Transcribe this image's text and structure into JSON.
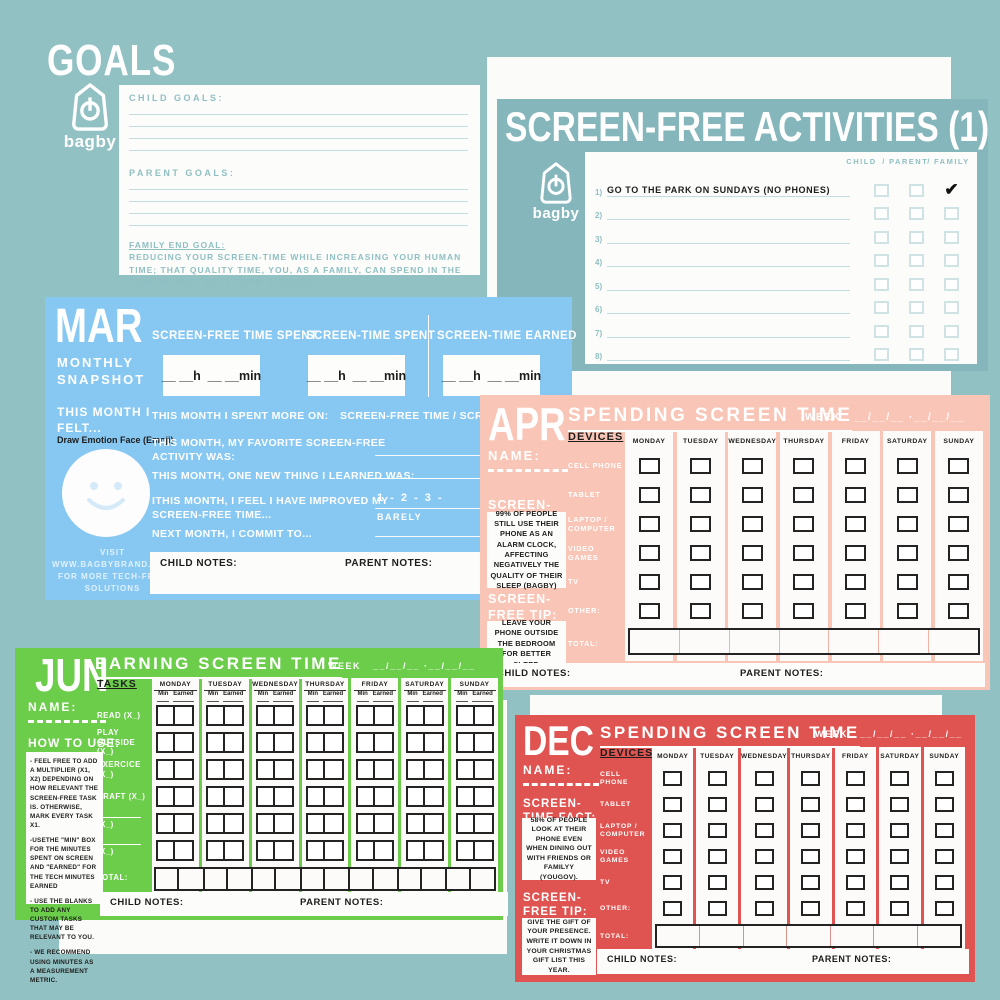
{
  "brand": {
    "name": "bagby"
  },
  "colors": {
    "background_teal": "#92c1c4",
    "panel_teal": "#84b6bb",
    "mar_blue": "#87c8f3",
    "apr_pink": "#f9c5b6",
    "jun_green": "#6ccd4b",
    "dec_red": "#df5350",
    "card_white": "#fcfcfb",
    "ink_black": "#1d1d1b",
    "teal_text": "#8fbfc2"
  },
  "goals": {
    "title": "GOALS",
    "child_label": "CHILD GOALS:",
    "parent_label": "PARENT GOALS:",
    "end_goal_label": "FAMILY END GOAL:",
    "end_goal_text": "REDUCING YOUR SCREEN-TIME WHILE INCREASING YOUR HUMAN TIME; THAT QUALITY TIME, YOU, AS A FAMILY, CAN SPEND IN THE REAL WORLD, AWAY FROM SCREENS."
  },
  "activities": {
    "title": "SCREEN-FREE ACTIVITIES (1)",
    "col_child": "CHILD",
    "col_parent": "PARENT",
    "col_family": "FAMILY",
    "col_separator": "/",
    "rows": [
      {
        "num": "1)",
        "text": "GO TO THE PARK ON SUNDAYS (NO PHONES)",
        "checked": "family"
      },
      {
        "num": "2)",
        "text": ""
      },
      {
        "num": "3)",
        "text": ""
      },
      {
        "num": "4)",
        "text": ""
      },
      {
        "num": "5)",
        "text": ""
      },
      {
        "num": "6)",
        "text": ""
      },
      {
        "num": "7)",
        "text": ""
      },
      {
        "num": "8)",
        "text": ""
      }
    ]
  },
  "mar": {
    "month": "MAR",
    "subtitle": "MONTHLY SNAPSHOT",
    "felt_label": "THIS MONTH I FELT...",
    "emoji_label": "Draw Emotion Face (Emoji)",
    "visit_text": "VISIT WWW.BAGBYBRAND.COM FOR MORE TECH-FREE SOLUTIONS",
    "col1": "SCREEN-FREE TIME SPENT",
    "col2": "SCREEN-TIME SPENT",
    "col3": "SCREEN-TIME EARNED",
    "time_box": "__ __h  __ __min",
    "q1": "THIS MONTH I SPENT MORE ON:",
    "q1_answer": "SCREEN-FREE TIME  /  SCREEN",
    "q2": "THIS MONTH, MY FAVORITE SCREEN-FREE ACTIVITY WAS:",
    "q3": "THIS MONTH, ONE NEW THING I LEARNED WAS:",
    "q4": "ITHIS MONTH, I FEEL I HAVE IMPROVED MY SCREEN-FREE TIME...",
    "q4_scale": "1  -  2  -  3  -",
    "q4_scale_caption": "BARELY",
    "q5": "NEXT MONTH, I COMMIT TO...",
    "child_notes": "CHILD NOTES:",
    "parent_notes": "PARENT NOTES:"
  },
  "apr": {
    "month": "APR",
    "title": "SPENDING SCREEN TIME",
    "week_label": "WEEK",
    "week_blanks": "__/__/__ ·__/__/__",
    "name_label": "NAME:",
    "fact_label": "SCREEN-TIME FACT:",
    "fact_text": "99% OF PEOPLE STILL USE THEIR PHONE AS AN ALARM CLOCK, AFFECTING NEGATIVELY THE QUALITY OF THEIR SLEEP (BAGBY)",
    "tip_label": "SCREEN-FREE TIP:",
    "tip_text": "LEAVE YOUR PHONE OUTSIDE THE BEDROOM FOR BETTER SLEEP.",
    "table_header": "DEVICES",
    "days": [
      "MONDAY",
      "TUESDAY",
      "WEDNESDAY",
      "THURSDAY",
      "FRIDAY",
      "SATURDAY",
      "SUNDAY"
    ],
    "devices": [
      "CELL PHONE",
      "TABLET",
      "LAPTOP / COMPUTER",
      "VIDEO GAMES",
      "TV",
      "OTHER:"
    ],
    "total_label": "TOTAL:",
    "child_notes": "CHILD NOTES:",
    "parent_notes": "PARENT NOTES:"
  },
  "jun": {
    "month": "JUN",
    "title": "EARNING SCREEN TIME",
    "week_label": "WEEK",
    "week_blanks": "__/__/__ ·__/__/__",
    "name_label": "NAME:",
    "howto_label": "HOW TO USE:",
    "howto_items": [
      "- FEEL FREE TO ADD A MULTIPLIER (X1, X2) DEPENDING ON HOW RELEVANT THE SCREEN-FREE TASK IS. OTHERWISE, MARK EVERY TASK X1.",
      "-USETHE \"MIN\" BOX FOR THE MINUTES SPENT ON SCREEN AND \"EARNED\" FOR THE TECH MINUTES EARNED",
      "- USE THE BLANKS TO ADD ANY CUSTOM TASKS THAT MAY BE RELEVANT TO YOU.",
      "- WE RECOMMEND USING MINUTES AS A MEASUREMENT METRIC."
    ],
    "table_header": "TASKS",
    "days": [
      "MONDAY",
      "TUESDAY",
      "WEDNESDAY",
      "THURSDAY",
      "FRIDAY",
      "SATURDAY",
      "SUNDAY"
    ],
    "sub_min": "Min",
    "sub_earned": "Earned",
    "tasks": [
      {
        "label": "READ (X_)"
      },
      {
        "label": "PLAY OUTSIDE (X_)"
      },
      {
        "label": "EXERCICE (X_)"
      },
      {
        "label": "CRAFT (X_)"
      },
      {
        "label": "(X_)",
        "blank": true
      },
      {
        "label": "(X_)",
        "blank": true
      }
    ],
    "total_label": "TOTAL:",
    "child_notes": "CHILD NOTES:",
    "parent_notes": "PARENT NOTES:"
  },
  "dec": {
    "month": "DEC",
    "title": "SPENDING SCREEN TIME",
    "week_label": "WEEK",
    "week_blanks": "__/__/__ ·__/__/__",
    "name_label": "NAME:",
    "fact_label": "SCREEN-TIME FACT:",
    "fact_text": "58% OF PEOPLE LOOK AT THEIR PHONE EVEN WHEN DINING OUT WITH FRIENDS OR FAMILYY (YOUGOV).",
    "tip_label": "SCREEN-FREE TIP:",
    "tip_text": "GIVE THE GIFT OF YOUR PRESENCE. WRITE IT DOWN IN YOUR CHRISTMAS GIFT LIST THIS YEAR.",
    "table_header": "DEVICES",
    "days": [
      "MONDAY",
      "TUESDAY",
      "WEDNESDAY",
      "THURSDAY",
      "FRIDAY",
      "SATURDAY",
      "SUNDAY"
    ],
    "devices": [
      "CELL PHONE",
      "TABLET",
      "LAPTOP / COMPUTER",
      "VIDEO GAMES",
      "TV",
      "OTHER:"
    ],
    "total_label": "TOTAL:",
    "child_notes": "CHILD NOTES:",
    "parent_notes": "PARENT NOTES:"
  }
}
